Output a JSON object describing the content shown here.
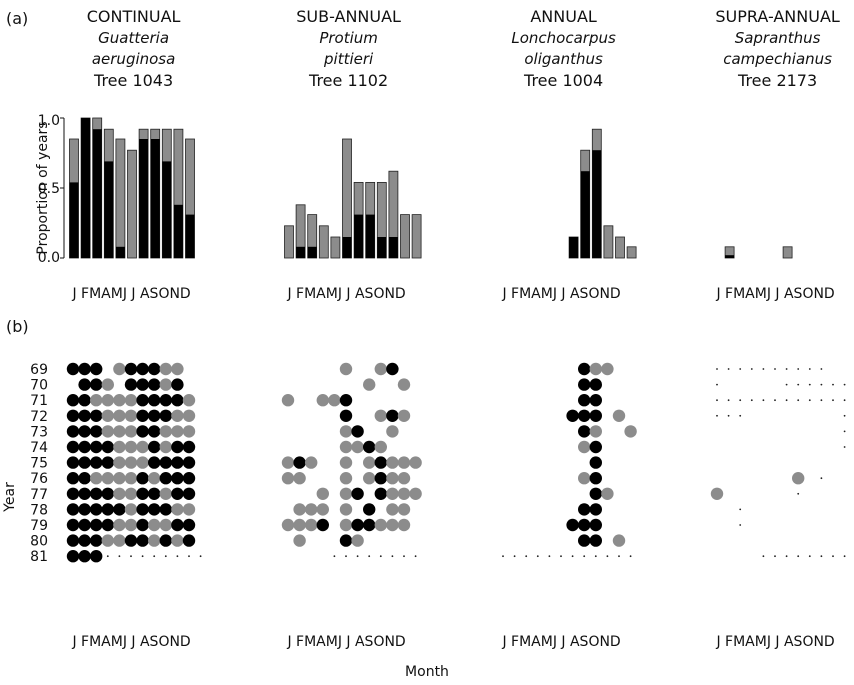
{
  "figure": {
    "panel_a_label": "(a)",
    "panel_b_label": "(b)",
    "month_axis_label": "J FMAMJ J ASOND",
    "month_label": "Month",
    "year_label": "Year",
    "proportion_label": "Proportion of years",
    "y_ticks": [
      "1.0",
      "0.5",
      "0.0"
    ]
  },
  "chart_data": {
    "type": "bar",
    "months": [
      "J",
      "F",
      "M",
      "A",
      "M",
      "J",
      "J",
      "A",
      "S",
      "O",
      "N",
      "D"
    ],
    "ylim": [
      0,
      1
    ],
    "years": [
      "69",
      "70",
      "71",
      "72",
      "73",
      "74",
      "75",
      "76",
      "77",
      "78",
      "79",
      "80",
      "81"
    ],
    "colors": {
      "black": "#000000",
      "gray": "#8c8c8c"
    },
    "panels": [
      {
        "title": "CONTINUAL",
        "species_line1": "Guatteria",
        "species_line2": "aeruginosa",
        "tree": "Tree 1043",
        "black": [
          0.54,
          1.0,
          0.92,
          0.69,
          0.08,
          0,
          0.85,
          0.85,
          0.69,
          0.38,
          0.31,
          0
        ],
        "total": [
          0.85,
          1.0,
          1.0,
          0.92,
          0.85,
          0.77,
          0.92,
          0.92,
          0.92,
          0.92,
          0.85,
          0
        ],
        "dots": [
          [
            1,
            1,
            1,
            0,
            2,
            1,
            1,
            1,
            2,
            2,
            0,
            0
          ],
          [
            0,
            1,
            1,
            2,
            0,
            1,
            1,
            1,
            2,
            1,
            0,
            0
          ],
          [
            1,
            1,
            2,
            2,
            2,
            2,
            1,
            1,
            1,
            1,
            2,
            0
          ],
          [
            1,
            1,
            1,
            2,
            2,
            2,
            1,
            1,
            1,
            2,
            2,
            0
          ],
          [
            1,
            1,
            1,
            2,
            2,
            2,
            1,
            1,
            2,
            2,
            2,
            0
          ],
          [
            1,
            1,
            1,
            1,
            2,
            2,
            2,
            1,
            2,
            1,
            1,
            0
          ],
          [
            1,
            1,
            1,
            1,
            2,
            2,
            2,
            1,
            1,
            1,
            1,
            0
          ],
          [
            1,
            1,
            2,
            2,
            2,
            2,
            1,
            2,
            1,
            1,
            1,
            0
          ],
          [
            1,
            1,
            1,
            1,
            2,
            2,
            1,
            1,
            2,
            1,
            1,
            0
          ],
          [
            1,
            1,
            1,
            1,
            1,
            2,
            1,
            1,
            1,
            2,
            2,
            0
          ],
          [
            1,
            1,
            1,
            1,
            2,
            2,
            1,
            2,
            2,
            1,
            1,
            0
          ],
          [
            1,
            1,
            1,
            2,
            2,
            1,
            1,
            2,
            1,
            2,
            1,
            0
          ],
          [
            1,
            1,
            1,
            3,
            3,
            3,
            3,
            3,
            3,
            3,
            3,
            3
          ]
        ]
      },
      {
        "title": "SUB-ANNUAL",
        "species_line1": "Protium",
        "species_line2": "pittieri",
        "tree": "Tree 1102",
        "black": [
          0,
          0.08,
          0.08,
          0,
          0,
          0.15,
          0.31,
          0.31,
          0.15,
          0.15,
          0,
          0
        ],
        "total": [
          0.23,
          0.38,
          0.31,
          0.23,
          0.15,
          0.85,
          0.54,
          0.54,
          0.54,
          0.62,
          0.31,
          0.31
        ],
        "dots": [
          [
            0,
            0,
            0,
            0,
            0,
            2,
            0,
            0,
            2,
            1,
            0,
            0
          ],
          [
            0,
            0,
            0,
            0,
            0,
            0,
            0,
            2,
            0,
            0,
            2,
            0
          ],
          [
            2,
            0,
            0,
            2,
            2,
            1,
            0,
            0,
            0,
            0,
            0,
            0
          ],
          [
            0,
            0,
            0,
            0,
            0,
            1,
            0,
            0,
            2,
            1,
            2,
            0
          ],
          [
            0,
            0,
            0,
            0,
            0,
            2,
            1,
            0,
            0,
            2,
            0,
            0
          ],
          [
            0,
            0,
            0,
            0,
            0,
            2,
            2,
            1,
            2,
            0,
            0,
            0
          ],
          [
            2,
            1,
            2,
            0,
            0,
            2,
            0,
            2,
            1,
            2,
            2,
            2
          ],
          [
            2,
            2,
            0,
            0,
            0,
            2,
            0,
            2,
            1,
            2,
            2,
            0
          ],
          [
            0,
            0,
            0,
            2,
            0,
            2,
            1,
            0,
            1,
            2,
            2,
            2
          ],
          [
            0,
            2,
            2,
            2,
            0,
            2,
            0,
            1,
            0,
            2,
            2,
            0
          ],
          [
            2,
            2,
            2,
            1,
            0,
            2,
            1,
            1,
            2,
            2,
            2,
            0
          ],
          [
            0,
            2,
            0,
            0,
            0,
            1,
            2,
            0,
            0,
            0,
            0,
            0
          ],
          [
            0,
            0,
            0,
            0,
            3,
            3,
            3,
            3,
            3,
            3,
            3,
            3
          ]
        ]
      },
      {
        "title": "ANNUAL",
        "species_line1": "Lonchocarpus",
        "species_line2": "oliganthus",
        "tree": "Tree 1004",
        "black": [
          0,
          0,
          0,
          0,
          0,
          0,
          0.15,
          0.62,
          0.77,
          0,
          0,
          0
        ],
        "total": [
          0,
          0,
          0,
          0,
          0,
          0,
          0.15,
          0.77,
          0.92,
          0.23,
          0.15,
          0.08
        ],
        "dots": [
          [
            0,
            0,
            0,
            0,
            0,
            0,
            0,
            1,
            2,
            2,
            0,
            0
          ],
          [
            0,
            0,
            0,
            0,
            0,
            0,
            0,
            1,
            1,
            0,
            0,
            0
          ],
          [
            0,
            0,
            0,
            0,
            0,
            0,
            0,
            1,
            1,
            0,
            0,
            0
          ],
          [
            0,
            0,
            0,
            0,
            0,
            0,
            1,
            1,
            1,
            0,
            2,
            0
          ],
          [
            0,
            0,
            0,
            0,
            0,
            0,
            0,
            1,
            2,
            0,
            0,
            2
          ],
          [
            0,
            0,
            0,
            0,
            0,
            0,
            0,
            2,
            1,
            0,
            0,
            0
          ],
          [
            0,
            0,
            0,
            0,
            0,
            0,
            0,
            0,
            1,
            0,
            0,
            0
          ],
          [
            0,
            0,
            0,
            0,
            0,
            0,
            0,
            2,
            1,
            0,
            0,
            0
          ],
          [
            0,
            0,
            0,
            0,
            0,
            0,
            0,
            0,
            1,
            2,
            0,
            0
          ],
          [
            0,
            0,
            0,
            0,
            0,
            0,
            0,
            1,
            1,
            0,
            0,
            0
          ],
          [
            0,
            0,
            0,
            0,
            0,
            0,
            1,
            1,
            1,
            0,
            0,
            0
          ],
          [
            0,
            0,
            0,
            0,
            0,
            0,
            0,
            1,
            1,
            0,
            2,
            0
          ],
          [
            3,
            3,
            3,
            3,
            3,
            3,
            3,
            3,
            3,
            3,
            3,
            3
          ]
        ]
      },
      {
        "title": "SUPRA-ANNUAL",
        "species_line1": "Sapranthus",
        "species_line2": "campechianus",
        "tree": "Tree 2173",
        "black": [
          0,
          0.02,
          0,
          0,
          0,
          0,
          0,
          0,
          0,
          0,
          0,
          0
        ],
        "total": [
          0,
          0.08,
          0,
          0,
          0,
          0,
          0.08,
          0,
          0,
          0,
          0,
          0
        ],
        "dots": [
          [
            3,
            3,
            3,
            3,
            3,
            3,
            3,
            3,
            3,
            3,
            0,
            0
          ],
          [
            3,
            0,
            0,
            0,
            0,
            0,
            3,
            3,
            3,
            3,
            3,
            3
          ],
          [
            3,
            3,
            3,
            3,
            3,
            3,
            3,
            3,
            3,
            3,
            3,
            3
          ],
          [
            3,
            3,
            3,
            0,
            0,
            0,
            0,
            0,
            0,
            0,
            0,
            3
          ],
          [
            0,
            0,
            0,
            0,
            0,
            0,
            0,
            0,
            0,
            0,
            0,
            3
          ],
          [
            0,
            0,
            0,
            0,
            0,
            0,
            0,
            0,
            0,
            0,
            0,
            3
          ],
          [
            0,
            0,
            0,
            0,
            0,
            0,
            0,
            0,
            0,
            0,
            0,
            0
          ],
          [
            0,
            0,
            0,
            0,
            0,
            0,
            0,
            2,
            0,
            3,
            0,
            0
          ],
          [
            2,
            0,
            0,
            0,
            0,
            0,
            0,
            3,
            0,
            0,
            0,
            0
          ],
          [
            0,
            0,
            3,
            0,
            0,
            0,
            0,
            0,
            0,
            0,
            0,
            0
          ],
          [
            0,
            0,
            3,
            0,
            0,
            0,
            0,
            0,
            0,
            0,
            0,
            0
          ],
          [
            0,
            0,
            0,
            0,
            0,
            0,
            0,
            0,
            0,
            0,
            0,
            0
          ],
          [
            0,
            0,
            0,
            0,
            3,
            3,
            3,
            3,
            3,
            3,
            3,
            3
          ]
        ]
      }
    ]
  }
}
